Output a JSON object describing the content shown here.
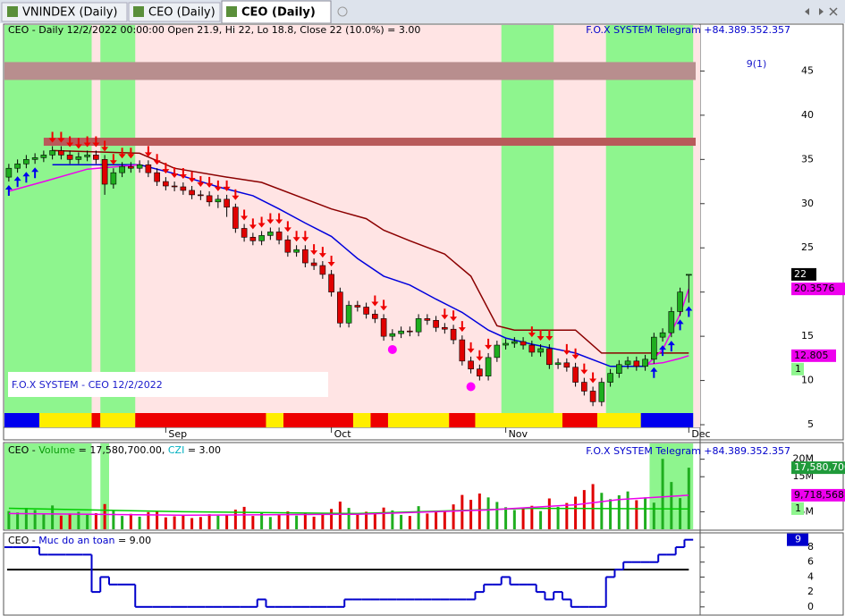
{
  "tabs": [
    "VNINDEX (Daily)",
    "CEO (Daily)",
    "CEO (Daily)"
  ],
  "chart_data": [
    {
      "type": "candlestick",
      "title": "CEO - Daily 12/2/2022 00:00:00 Open 21.9, Hi 22, Lo 18.8, Close 22 (10.0%)  = 3.00",
      "subtitle": "F.O.X SYSTEM Telegram +84.389.352.357",
      "annotation": "F.O.X SYSTEM - CEO 12/2/2022",
      "headline": "9(1)",
      "signal_label": "1",
      "xlim": [
        -0.5,
        79.3
      ],
      "xticks": [
        {
          "value": 18,
          "label": "Sep"
        },
        {
          "value": 37,
          "label": "Oct"
        },
        {
          "value": 57,
          "label": "Nov"
        },
        {
          "value": 78,
          "label": "Dec"
        }
      ],
      "ylim": [
        4.7,
        50.2
      ],
      "yticks": [
        5,
        10,
        15,
        20,
        25,
        30,
        35,
        40,
        45
      ],
      "up_color": "#1fae1f",
      "down_color": "#e00000",
      "background_color": "#ffe4e4",
      "zone_color": "#8ef58e",
      "green_zones": [
        [
          0,
          9
        ],
        [
          11,
          14
        ],
        [
          57,
          62
        ],
        [
          69,
          78
        ]
      ],
      "levels": [
        {
          "value": 45,
          "color": "#b88e8e"
        },
        {
          "value": 37,
          "color": "#b85a5a"
        }
      ],
      "open": [
        33,
        34,
        34.5,
        35,
        35.2,
        35.5,
        36,
        35.5,
        35,
        35.3,
        35.5,
        35,
        32.2,
        33.5,
        34.2,
        34,
        34.4,
        33.5,
        32.5,
        32,
        31.9,
        31.5,
        31,
        30.9,
        30.2,
        30.5,
        29.6,
        27.2,
        26.2,
        25.8,
        26.4,
        26.8,
        25.9,
        24.5,
        24.8,
        23.3,
        23,
        22,
        20,
        16.5,
        18.5,
        18.3,
        17.5,
        17,
        15,
        15.3,
        15.6,
        15.5,
        17,
        16.8,
        16,
        15.8,
        14.6,
        12.2,
        11.3,
        10.5,
        12.6,
        14,
        14.2,
        14.4,
        14,
        13.2,
        13.6,
        11.8,
        12,
        11.5,
        9.8,
        8.8,
        7.6,
        9.8,
        10.8,
        11.8,
        12.2,
        11.6,
        12.4,
        14.9,
        15.4,
        17.8,
        21.9
      ],
      "high": [
        34.5,
        35,
        35.5,
        35.7,
        36,
        36.5,
        36.5,
        36,
        35.8,
        36,
        36,
        35.5,
        34,
        34.7,
        34.7,
        34.9,
        34.9,
        34,
        33,
        32.5,
        32.4,
        32,
        31.5,
        31.4,
        31,
        31,
        30,
        27.7,
        26.7,
        26.9,
        27.3,
        27.3,
        26.4,
        25.3,
        25.3,
        23.8,
        23.5,
        22.5,
        20.5,
        19,
        19,
        18.8,
        18,
        17.5,
        15.8,
        16.1,
        16.1,
        17.5,
        17.5,
        17.3,
        16.5,
        16.3,
        15.1,
        12.7,
        11.8,
        13.1,
        14.5,
        14.7,
        14.9,
        14.9,
        14.5,
        14.1,
        14.1,
        12.5,
        12.5,
        12,
        10.3,
        9.3,
        10.3,
        11.3,
        12.3,
        12.7,
        12.7,
        12.9,
        15.4,
        15.9,
        18.3,
        20.5,
        22
      ],
      "low": [
        32.5,
        33.5,
        34,
        34.5,
        34.7,
        35,
        35,
        34.5,
        34.5,
        34.8,
        34.5,
        31,
        31.7,
        33,
        33.5,
        33.5,
        33,
        32,
        31.5,
        31.4,
        31,
        30.5,
        30.4,
        29.7,
        29.5,
        28.5,
        26.7,
        25.7,
        25.3,
        25.3,
        25.9,
        25.4,
        24,
        24,
        22.8,
        22.5,
        21.5,
        19.5,
        16,
        16,
        17.8,
        17,
        16.5,
        14.5,
        14.5,
        14.8,
        15,
        15,
        16.3,
        15.5,
        15.3,
        14.1,
        11.7,
        10.8,
        10,
        10,
        12.1,
        13.5,
        13.7,
        13.5,
        12.7,
        12.7,
        11.3,
        11.3,
        11,
        9.3,
        8.3,
        7.1,
        7.1,
        9.3,
        10.3,
        11.3,
        11.1,
        11.1,
        11.9,
        14.4,
        14.9,
        17.3,
        18.8
      ],
      "close": [
        34,
        34.5,
        35,
        35.2,
        35.5,
        36,
        35.5,
        35,
        35.3,
        35.5,
        35,
        32.2,
        33.5,
        34.2,
        34,
        34.4,
        33.5,
        32.5,
        32,
        31.9,
        31.5,
        31,
        30.9,
        30.2,
        30.5,
        29.6,
        27.2,
        26.2,
        25.8,
        26.4,
        26.8,
        25.9,
        24.5,
        24.8,
        23.3,
        23,
        22,
        20,
        16.5,
        18.5,
        18.3,
        17.5,
        17,
        15,
        15.3,
        15.6,
        15.5,
        17,
        16.8,
        16,
        15.8,
        14.6,
        12.2,
        11.3,
        10.5,
        12.6,
        14,
        14.2,
        14.4,
        14,
        13.2,
        13.6,
        11.8,
        12,
        11.5,
        9.8,
        8.8,
        7.6,
        9.8,
        10.8,
        11.8,
        12.2,
        11.6,
        12.4,
        14.9,
        15.4,
        17.8,
        20,
        22
      ],
      "series": [
        {
          "color": "#8b0000",
          "x": [
            5,
            15,
            19,
            25,
            29,
            37,
            41,
            43,
            46,
            50,
            53,
            56,
            58,
            65,
            68,
            73,
            78
          ],
          "values": [
            36,
            35.7,
            34,
            33,
            32.4,
            29.4,
            28.3,
            27,
            25.8,
            24.3,
            21.8,
            16.2,
            15.7,
            15.7,
            13.1,
            13.1,
            13.1
          ]
        },
        {
          "color": "#0000dd",
          "x": [
            5,
            15,
            19,
            24,
            28,
            31,
            34,
            37,
            40,
            43,
            46,
            49,
            52,
            55,
            57,
            60,
            65,
            69,
            73
          ],
          "values": [
            34.4,
            34.4,
            33.4,
            31.9,
            30.9,
            29.4,
            27.8,
            26.3,
            23.8,
            21.8,
            20.8,
            19.2,
            17.7,
            15.7,
            14.8,
            14.1,
            13.1,
            11.6,
            11.6
          ]
        },
        {
          "color": "#ee00ee",
          "x": [
            0,
            4,
            9,
            15,
            16,
            73,
            75,
            77,
            78
          ],
          "values": [
            31.4,
            32.5,
            33.9,
            34.4,
            null,
            11.6,
            13.5,
            17.5,
            20.3576
          ]
        },
        {
          "color": "#ee00ee",
          "x": [
            73,
            75,
            77,
            78
          ],
          "values": [
            11.8,
            12,
            12.5,
            12.805
          ]
        }
      ],
      "state_strip": [
        {
          "from": 0,
          "to": 3,
          "color": "#0000ee"
        },
        {
          "from": 4,
          "to": 9,
          "color": "#ffee00"
        },
        {
          "from": 10,
          "to": 10,
          "color": "#ee0000"
        },
        {
          "from": 11,
          "to": 14,
          "color": "#ffee00"
        },
        {
          "from": 15,
          "to": 29,
          "color": "#ee0000"
        },
        {
          "from": 30,
          "to": 31,
          "color": "#ffee00"
        },
        {
          "from": 32,
          "to": 39,
          "color": "#ee0000"
        },
        {
          "from": 40,
          "to": 41,
          "color": "#ffee00"
        },
        {
          "from": 42,
          "to": 43,
          "color": "#ee0000"
        },
        {
          "from": 44,
          "to": 50,
          "color": "#ffee00"
        },
        {
          "from": 51,
          "to": 53,
          "color": "#ee0000"
        },
        {
          "from": 54,
          "to": 63,
          "color": "#ffee00"
        },
        {
          "from": 64,
          "to": 67,
          "color": "#ee0000"
        },
        {
          "from": 68,
          "to": 72,
          "color": "#ffee00"
        },
        {
          "from": 73,
          "to": 78,
          "color": "#0000ee"
        }
      ],
      "sell_signals": [
        5,
        6,
        7,
        8,
        9,
        10,
        11,
        12,
        13,
        14,
        16,
        17,
        18,
        19,
        20,
        21,
        22,
        23,
        24,
        25,
        26,
        27,
        28,
        29,
        30,
        31,
        32,
        33,
        34,
        35,
        36,
        37,
        42,
        43,
        50,
        51,
        52,
        53,
        54,
        55,
        60,
        61,
        62,
        64,
        65,
        66,
        67
      ],
      "buy_signals": [
        0,
        1,
        2,
        3,
        74,
        75,
        76,
        77,
        78
      ],
      "sell_color": "#ee0000",
      "buy_color": "#0000ee",
      "circles": {
        "color": "#ff00ff",
        "x": [
          44,
          53
        ],
        "values": [
          13.5,
          9.3
        ]
      }
    },
    {
      "type": "bar",
      "title_parts": [
        {
          "text": "CEO - ",
          "color": "#000000"
        },
        {
          "text": "Volume",
          "color": "#0a9a0a"
        },
        {
          "text": " = 17,580,700.00, ",
          "color": "#000000"
        },
        {
          "text": "CZI",
          "color": "#00b0c0"
        },
        {
          "text": " = 3.00",
          "color": "#000000"
        }
      ],
      "subtitle": "F.O.X SYSTEM Telegram +84.389.352.357",
      "signal_label": "1",
      "xlim": [
        -0.5,
        79.3
      ],
      "ylim": [
        0,
        24500000
      ],
      "yticks": [
        {
          "value": 20000000,
          "label": "20M"
        },
        {
          "value": 15000000,
          "label": "15M"
        },
        {
          "value": 5000000,
          "label": "5M"
        }
      ],
      "zone_color": "#8ef58e",
      "green_zones": [
        [
          0,
          9
        ],
        [
          11,
          11
        ],
        [
          74,
          78
        ]
      ],
      "up_color": "#1fae1f",
      "down_color": "#e00000",
      "values": [
        5200000,
        4800000,
        6100000,
        5500000,
        4200000,
        6800000,
        3900000,
        4500000,
        5000000,
        4100000,
        4600000,
        7200000,
        5300000,
        3800000,
        4400000,
        3600000,
        4900000,
        5200000,
        3400000,
        3700000,
        4000000,
        3200000,
        3500000,
        4300000,
        3900000,
        4100000,
        5600000,
        6400000,
        3800000,
        4600000,
        3500000,
        4200000,
        5100000,
        3900000,
        4700000,
        3600000,
        4400000,
        5800000,
        7900000,
        6100000,
        4300000,
        5000000,
        4600000,
        6200000,
        5400000,
        4100000,
        3800000,
        6600000,
        4500000,
        4900000,
        5300000,
        7100000,
        9800000,
        8400000,
        10200000,
        9100000,
        7800000,
        6300000,
        5500000,
        5900000,
        6700000,
        5200000,
        8800000,
        6400000,
        7500000,
        9300000,
        11200000,
        12900000,
        10400000,
        8600000,
        9700000,
        10800000,
        8300000,
        9100000,
        7600000,
        20100000,
        13500000,
        8900000,
        17580700
      ],
      "last_label": "17,580,700",
      "series": [
        {
          "color": "#00cc00",
          "x": [
            0,
            20,
            40,
            60,
            78
          ],
          "values": [
            6000000,
            5000000,
            4500000,
            6000000,
            5800000
          ]
        },
        {
          "color": "#ee00ee",
          "x": [
            0,
            20,
            40,
            55,
            65,
            70,
            78
          ],
          "values": [
            4500000,
            4000000,
            4300000,
            5500000,
            7000000,
            8500000,
            9718568
          ],
          "last_label": "9,718,568"
        }
      ]
    },
    {
      "type": "step",
      "title_parts": [
        {
          "text": "CEO - ",
          "color": "#000000"
        },
        {
          "text": "Muc do an toan",
          "color": "#0000cc"
        },
        {
          "text": " = 9.00",
          "color": "#000000"
        }
      ],
      "color": "#0000cc",
      "xlim": [
        -0.5,
        79.3
      ],
      "ylim": [
        -1.1,
        9.8
      ],
      "yticks": [
        0,
        2,
        4,
        6,
        8
      ],
      "level": 5,
      "values": [
        8,
        8,
        8,
        8,
        7,
        7,
        7,
        7,
        7,
        7,
        2,
        4,
        3,
        3,
        3,
        0,
        0,
        0,
        0,
        0,
        0,
        0,
        0,
        0,
        0,
        0,
        0,
        0,
        0,
        1,
        0,
        0,
        0,
        0,
        0,
        0,
        0,
        0,
        0,
        1,
        1,
        1,
        1,
        1,
        1,
        1,
        1,
        1,
        1,
        1,
        1,
        1,
        1,
        1,
        2,
        3,
        3,
        4,
        3,
        3,
        3,
        2,
        1,
        2,
        1,
        0,
        0,
        0,
        0,
        4,
        5,
        6,
        6,
        6,
        6,
        7,
        7,
        8,
        9
      ]
    }
  ]
}
